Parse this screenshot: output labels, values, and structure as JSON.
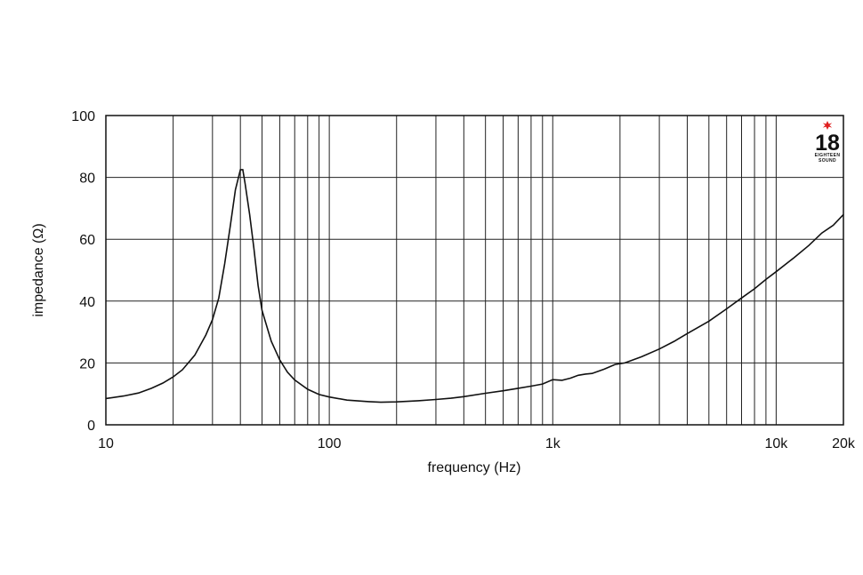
{
  "chart_data": {
    "type": "line",
    "title": "",
    "xlabel": "frequency (Hz)",
    "ylabel": "impedance (Ω)",
    "xscale": "log",
    "xlim": [
      10,
      20000
    ],
    "ylim": [
      0,
      100
    ],
    "grid": true,
    "x_ticks": [
      {
        "value": 10,
        "label": "10"
      },
      {
        "value": 100,
        "label": "100"
      },
      {
        "value": 1000,
        "label": "1k"
      },
      {
        "value": 10000,
        "label": "10k"
      },
      {
        "value": 20000,
        "label": "20k"
      }
    ],
    "y_ticks": [
      {
        "value": 0,
        "label": "0"
      },
      {
        "value": 20,
        "label": "20"
      },
      {
        "value": 40,
        "label": "40"
      },
      {
        "value": 60,
        "label": "60"
      },
      {
        "value": 80,
        "label": "80"
      },
      {
        "value": 100,
        "label": "100"
      }
    ],
    "series": [
      {
        "color": "#111111",
        "points": [
          [
            10,
            8.5
          ],
          [
            12,
            9.3
          ],
          [
            14,
            10.3
          ],
          [
            16,
            11.8
          ],
          [
            18,
            13.5
          ],
          [
            20,
            15.5
          ],
          [
            22,
            17.8
          ],
          [
            25,
            22.5
          ],
          [
            28,
            29
          ],
          [
            30,
            34
          ],
          [
            32,
            41
          ],
          [
            34,
            52
          ],
          [
            36,
            64
          ],
          [
            38,
            76
          ],
          [
            40,
            82.5
          ],
          [
            41,
            82.5
          ],
          [
            42,
            78
          ],
          [
            44,
            68
          ],
          [
            46,
            57
          ],
          [
            48,
            45
          ],
          [
            50,
            37
          ],
          [
            55,
            27
          ],
          [
            60,
            21
          ],
          [
            65,
            17
          ],
          [
            70,
            14.5
          ],
          [
            80,
            11.5
          ],
          [
            90,
            9.8
          ],
          [
            100,
            9
          ],
          [
            120,
            8
          ],
          [
            150,
            7.5
          ],
          [
            170,
            7.3
          ],
          [
            200,
            7.4
          ],
          [
            250,
            7.8
          ],
          [
            300,
            8.2
          ],
          [
            350,
            8.6
          ],
          [
            400,
            9.1
          ],
          [
            500,
            10.2
          ],
          [
            600,
            11
          ],
          [
            700,
            11.8
          ],
          [
            800,
            12.5
          ],
          [
            900,
            13.2
          ],
          [
            1000,
            14.6
          ],
          [
            1100,
            14.4
          ],
          [
            1200,
            15.1
          ],
          [
            1300,
            16
          ],
          [
            1400,
            16.4
          ],
          [
            1500,
            16.6
          ],
          [
            1700,
            18
          ],
          [
            1900,
            19.5
          ],
          [
            2100,
            20
          ],
          [
            2500,
            22
          ],
          [
            3000,
            24.5
          ],
          [
            3500,
            27
          ],
          [
            4000,
            29.5
          ],
          [
            5000,
            33.5
          ],
          [
            6000,
            37.5
          ],
          [
            7000,
            41
          ],
          [
            8000,
            44
          ],
          [
            9000,
            47
          ],
          [
            10000,
            49.5
          ],
          [
            12000,
            54
          ],
          [
            14000,
            58
          ],
          [
            16000,
            62
          ],
          [
            18000,
            64.5
          ],
          [
            20000,
            68
          ]
        ]
      }
    ]
  },
  "logo": {
    "number": "18",
    "line1": "EIGHTEEN",
    "line2": "SOUND",
    "accent_color": "#e02020"
  }
}
